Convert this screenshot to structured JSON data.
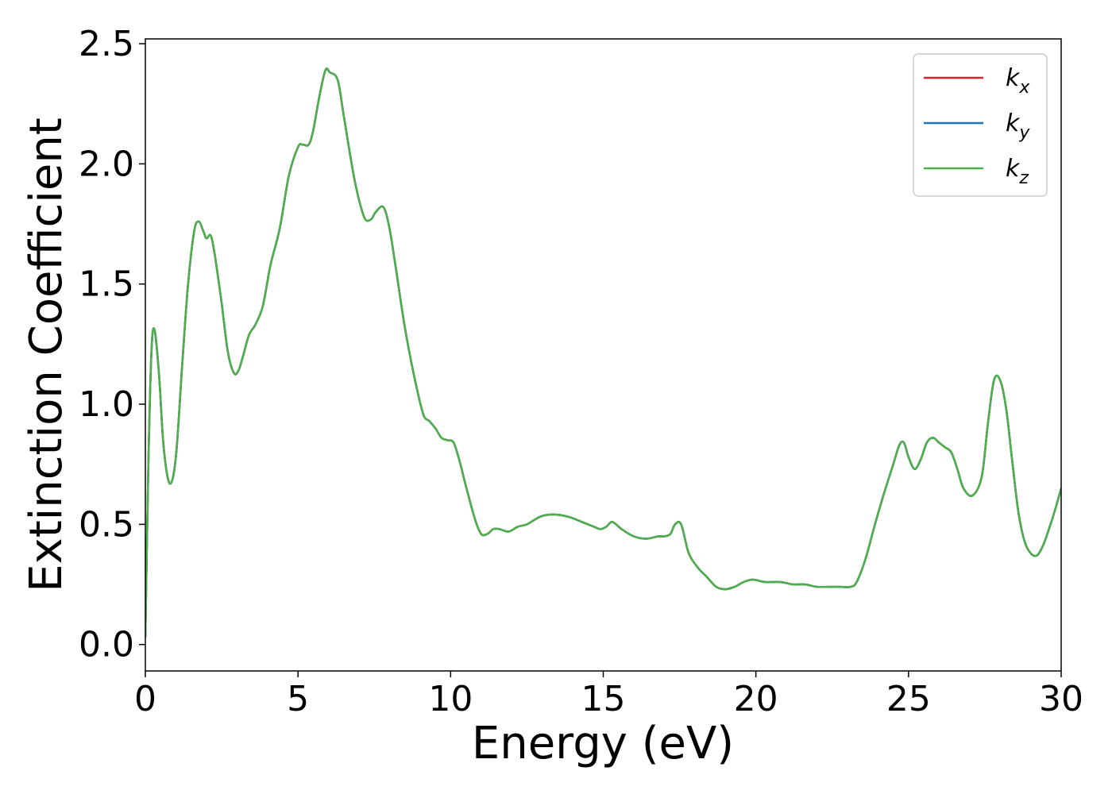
{
  "chart_data": {
    "type": "line",
    "xlabel": "Energy (eV)",
    "ylabel": "Extinction Coefficient",
    "xlim": [
      0,
      30
    ],
    "ylim": [
      -0.11,
      2.52
    ],
    "xticks": [
      0,
      5,
      10,
      15,
      20,
      25,
      30
    ],
    "xtick_labels": [
      "0",
      "5",
      "10",
      "15",
      "20",
      "25",
      "30"
    ],
    "yticks": [
      0.0,
      0.5,
      1.0,
      1.5,
      2.0,
      2.5
    ],
    "ytick_labels": [
      "0.0",
      "0.5",
      "1.0",
      "1.5",
      "2.0",
      "2.5"
    ],
    "grid": false,
    "legend_position": "top-right",
    "series": [
      {
        "name": "k",
        "subscript": "x",
        "color": "#d62728"
      },
      {
        "name": "k",
        "subscript": "y",
        "color": "#1f77b4"
      },
      {
        "name": "k",
        "subscript": "z",
        "color": "#4daf4a"
      }
    ],
    "x": [
      0,
      0.1,
      0.2,
      0.3,
      0.45,
      0.6,
      0.8,
      1.0,
      1.2,
      1.4,
      1.6,
      1.75,
      1.9,
      2.0,
      2.15,
      2.3,
      2.5,
      2.7,
      2.9,
      3.05,
      3.2,
      3.4,
      3.6,
      3.85,
      4.1,
      4.4,
      4.7,
      5.0,
      5.15,
      5.35,
      5.5,
      5.7,
      5.9,
      6.05,
      6.3,
      6.5,
      6.8,
      7.0,
      7.2,
      7.4,
      7.55,
      7.8,
      8.0,
      8.2,
      8.5,
      8.8,
      9.1,
      9.3,
      9.5,
      9.7,
      9.9,
      10.1,
      10.3,
      10.5,
      10.8,
      11.0,
      11.2,
      11.4,
      11.6,
      11.9,
      12.2,
      12.5,
      12.9,
      13.2,
      13.5,
      13.9,
      14.3,
      14.7,
      14.9,
      15.1,
      15.3,
      15.6,
      16.0,
      16.4,
      16.8,
      17.0,
      17.2,
      17.35,
      17.55,
      17.8,
      18.1,
      18.4,
      18.7,
      19.0,
      19.3,
      19.6,
      19.9,
      20.3,
      20.8,
      21.2,
      21.6,
      22.0,
      22.4,
      22.8,
      23.1,
      23.3,
      23.6,
      23.9,
      24.2,
      24.5,
      24.7,
      24.85,
      25.0,
      25.2,
      25.4,
      25.6,
      25.8,
      26.0,
      26.2,
      26.4,
      26.6,
      26.8,
      27.1,
      27.4,
      27.6,
      27.8,
      28.0,
      28.2,
      28.4,
      28.6,
      28.8,
      29.0,
      29.2,
      29.4,
      29.6,
      29.8,
      30.0
    ],
    "y": [
      0.03,
      0.75,
      1.22,
      1.31,
      1.12,
      0.82,
      0.67,
      0.78,
      1.15,
      1.5,
      1.72,
      1.76,
      1.72,
      1.69,
      1.7,
      1.6,
      1.42,
      1.22,
      1.13,
      1.14,
      1.2,
      1.29,
      1.33,
      1.41,
      1.58,
      1.73,
      1.95,
      2.07,
      2.08,
      2.08,
      2.14,
      2.28,
      2.39,
      2.38,
      2.35,
      2.2,
      1.97,
      1.85,
      1.77,
      1.77,
      1.8,
      1.82,
      1.73,
      1.57,
      1.32,
      1.12,
      0.96,
      0.93,
      0.9,
      0.86,
      0.85,
      0.84,
      0.76,
      0.66,
      0.52,
      0.46,
      0.46,
      0.48,
      0.48,
      0.47,
      0.49,
      0.5,
      0.53,
      0.54,
      0.54,
      0.53,
      0.51,
      0.49,
      0.48,
      0.49,
      0.51,
      0.48,
      0.45,
      0.44,
      0.45,
      0.45,
      0.46,
      0.5,
      0.5,
      0.38,
      0.32,
      0.28,
      0.24,
      0.23,
      0.24,
      0.26,
      0.27,
      0.26,
      0.26,
      0.25,
      0.25,
      0.24,
      0.24,
      0.24,
      0.24,
      0.26,
      0.36,
      0.5,
      0.63,
      0.75,
      0.83,
      0.84,
      0.78,
      0.73,
      0.77,
      0.84,
      0.86,
      0.84,
      0.82,
      0.8,
      0.73,
      0.65,
      0.62,
      0.7,
      0.92,
      1.1,
      1.1,
      0.98,
      0.76,
      0.55,
      0.43,
      0.38,
      0.37,
      0.41,
      0.48,
      0.56,
      0.65
    ]
  }
}
